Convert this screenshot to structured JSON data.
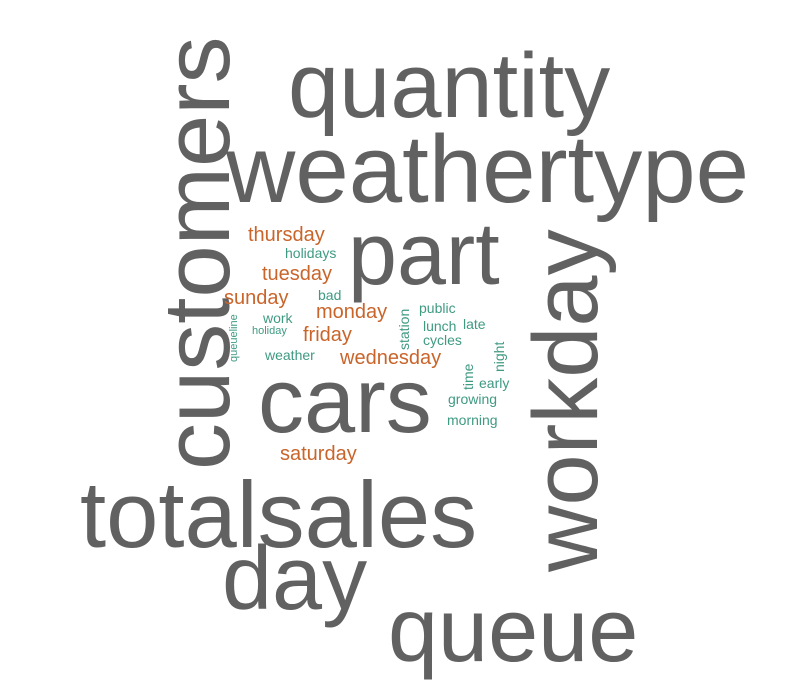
{
  "word_cloud": {
    "colors": {
      "primary_terms": "#616161",
      "weekday_terms": "#c9642a",
      "minor_terms": "#3f9a82"
    },
    "primary_terms": {
      "quantity": "quantity",
      "weathertype": "weathertype",
      "part": "part",
      "cars": "cars",
      "totalsales": "totalsales",
      "day": "day",
      "queue": "queue",
      "customers": "customers",
      "workday": "workday"
    },
    "weekday_terms": {
      "thursday": "thursday",
      "tuesday": "tuesday",
      "sunday": "sunday",
      "monday": "monday",
      "friday": "friday",
      "wednesday": "wednesday",
      "saturday": "saturday"
    },
    "minor_terms": {
      "holidays": "holidays",
      "bad": "bad",
      "work": "work",
      "holiday": "holiday",
      "weather": "weather",
      "public": "public",
      "lunch": "lunch",
      "late": "late",
      "cycles": "cycles",
      "early": "early",
      "growing": "growing",
      "morning": "morning",
      "queueline": "queueline",
      "station": "station",
      "night": "night",
      "time": "time"
    }
  }
}
